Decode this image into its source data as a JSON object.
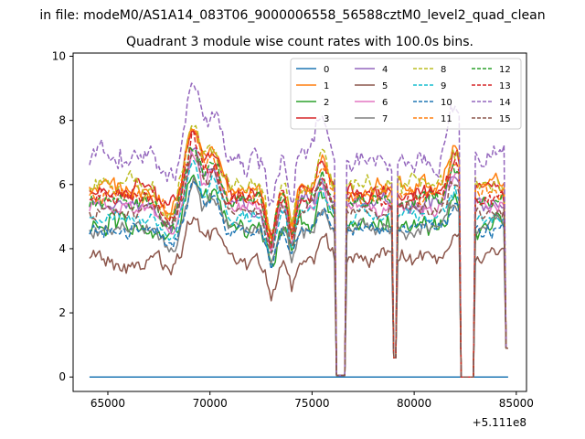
{
  "chart_data": {
    "type": "line",
    "suptitle": "in file: modeM0/AS1A14_083T06_9000006558_56588cztM0_level2_quad_clean",
    "title": "Quadrant 3 module wise count rates with 100.0s bins.",
    "xlabel": "",
    "ylabel": "",
    "x_offset_label": "+5.111e8",
    "xlim": [
      63300,
      85500
    ],
    "ylim": [
      -0.45,
      10.1
    ],
    "x_ticks": [
      65000,
      70000,
      75000,
      80000,
      85000
    ],
    "x_tick_labels": [
      "65000",
      "70000",
      "75000",
      "80000",
      "85000"
    ],
    "y_ticks": [
      0,
      2,
      4,
      6,
      8,
      10
    ],
    "y_tick_labels": [
      "0",
      "2",
      "4",
      "6",
      "8",
      "10"
    ],
    "x_start": 64100,
    "x_end": 84600,
    "dropout_windows": [
      {
        "start": 76200,
        "end": 76600,
        "min": 0.05
      },
      {
        "start": 79000,
        "end": 79100,
        "min": 0.6
      },
      {
        "start": 82300,
        "end": 82900,
        "min": 0.0
      }
    ],
    "legend": {
      "placement": "top-right",
      "columns": 4
    },
    "series": [
      {
        "name": "0",
        "color": "#1f77b4",
        "dash": "solid",
        "base": 0.0,
        "noise": 0.0
      },
      {
        "name": "1",
        "color": "#ff7f0e",
        "dash": "solid",
        "base": 5.9,
        "noise": 0.35
      },
      {
        "name": "2",
        "color": "#2ca02c",
        "dash": "solid",
        "base": 4.7,
        "noise": 0.45
      },
      {
        "name": "3",
        "color": "#d62728",
        "dash": "solid",
        "base": 5.8,
        "noise": 0.35
      },
      {
        "name": "4",
        "color": "#9467bd",
        "dash": "solid",
        "base": 5.4,
        "noise": 0.3
      },
      {
        "name": "5",
        "color": "#8c564b",
        "dash": "solid",
        "base": 3.7,
        "noise": 0.35
      },
      {
        "name": "6",
        "color": "#e377c2",
        "dash": "solid",
        "base": 5.3,
        "noise": 0.3
      },
      {
        "name": "7",
        "color": "#7f7f7f",
        "dash": "solid",
        "base": 4.6,
        "noise": 0.3
      },
      {
        "name": "8",
        "color": "#bcbd22",
        "dash": "dashed",
        "base": 6.0,
        "noise": 0.4
      },
      {
        "name": "9",
        "color": "#17becf",
        "dash": "dashed",
        "base": 5.0,
        "noise": 0.3
      },
      {
        "name": "10",
        "color": "#1f77b4",
        "dash": "dashed",
        "base": 4.6,
        "noise": 0.3
      },
      {
        "name": "11",
        "color": "#ff7f0e",
        "dash": "dashed",
        "base": 5.7,
        "noise": 0.35
      },
      {
        "name": "12",
        "color": "#2ca02c",
        "dash": "dashed",
        "base": 5.5,
        "noise": 0.35
      },
      {
        "name": "13",
        "color": "#d62728",
        "dash": "dashed",
        "base": 5.6,
        "noise": 0.35
      },
      {
        "name": "14",
        "color": "#9467bd",
        "dash": "dashed",
        "base": 6.9,
        "noise": 0.5
      },
      {
        "name": "15",
        "color": "#8c564b",
        "dash": "dashed",
        "base": 5.2,
        "noise": 0.3
      }
    ]
  }
}
